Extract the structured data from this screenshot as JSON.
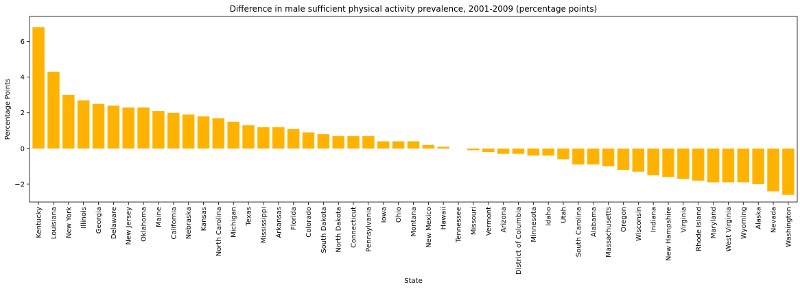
{
  "chart_data": {
    "type": "bar",
    "title": "Difference in male sufficient physical activity prevalence, 2001-2009 (percentage points)",
    "xlabel": "State",
    "ylabel": "Percentage Points",
    "ylim": [
      -3.0,
      7.4
    ],
    "yticks": [
      -2,
      0,
      2,
      4,
      6
    ],
    "ytick_labels": [
      "−2",
      "0",
      "2",
      "4",
      "6"
    ],
    "grid": false,
    "legend": "none",
    "bar_color": "#ffb300",
    "categories": [
      "Kentucky",
      "Louisiana",
      "New York",
      "Illinois",
      "Georgia",
      "Delaware",
      "New Jersey",
      "Oklahoma",
      "Maine",
      "California",
      "Nebraska",
      "Kansas",
      "North Carolina",
      "Michigan",
      "Texas",
      "Mississippi",
      "Arkansas",
      "Florida",
      "Colorado",
      "South Dakota",
      "North Dakota",
      "Connecticut",
      "Pennsylvania",
      "Iowa",
      "Ohio",
      "Montana",
      "New Mexico",
      "Hawaii",
      "Tennessee",
      "Missouri",
      "Vermont",
      "Arizona",
      "District of Columbia",
      "Minnesota",
      "Idaho",
      "Utah",
      "South Carolina",
      "Alabama",
      "Massachusetts",
      "Oregon",
      "Wisconsin",
      "Indiana",
      "New Hampshire",
      "Virginia",
      "Rhode Island",
      "Maryland",
      "West Virginia",
      "Wyoming",
      "Alaska",
      "Nevada",
      "Washington"
    ],
    "values": [
      6.8,
      4.3,
      3.0,
      2.7,
      2.5,
      2.4,
      2.3,
      2.3,
      2.1,
      2.0,
      1.9,
      1.8,
      1.7,
      1.5,
      1.3,
      1.2,
      1.2,
      1.1,
      0.9,
      0.8,
      0.7,
      0.7,
      0.7,
      0.4,
      0.4,
      0.4,
      0.2,
      0.1,
      0.0,
      -0.1,
      -0.2,
      -0.3,
      -0.3,
      -0.4,
      -0.4,
      -0.6,
      -0.9,
      -0.9,
      -1.0,
      -1.2,
      -1.3,
      -1.5,
      -1.6,
      -1.7,
      -1.8,
      -1.9,
      -1.9,
      -1.9,
      -2.0,
      -2.4,
      -2.6
    ]
  }
}
